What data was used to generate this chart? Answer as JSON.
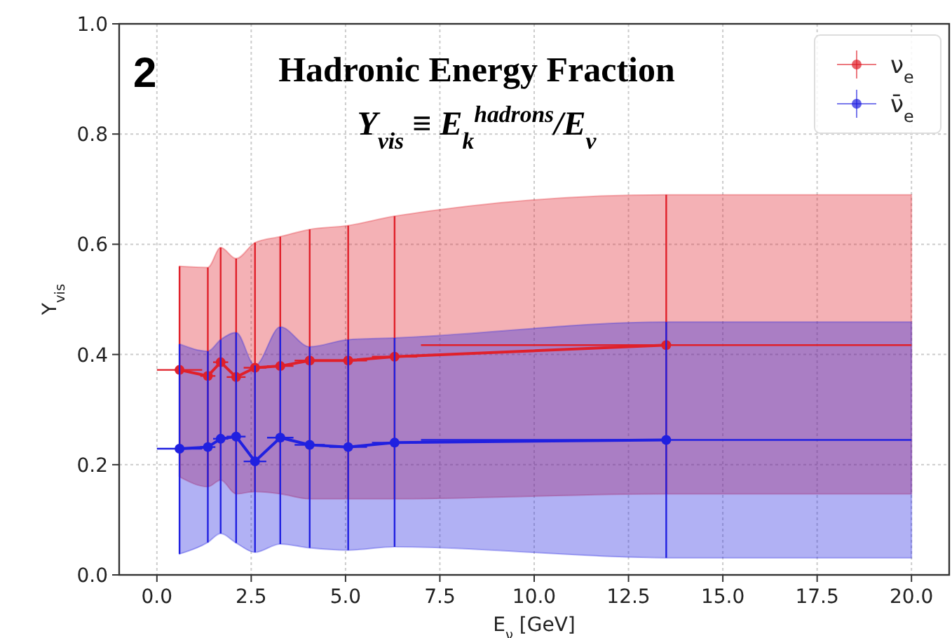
{
  "chart_data": {
    "type": "line",
    "title": "Hadronic Energy Fraction",
    "subtitle": "Y$_{vis}$ ≡ E$_{k}$$^{hadrons}$/E$_{ν}$",
    "xlabel": "E$_{ν}$ [GeV]",
    "ylabel": "Y$_{vis}$",
    "annotations": [
      "2"
    ],
    "x": [
      0.6,
      1.35,
      1.69,
      2.1,
      2.6,
      3.27,
      4.05,
      5.07,
      6.3,
      13.5,
      20
    ],
    "xlim": [
      -1,
      21
    ],
    "ylim": [
      0,
      1
    ],
    "xticks": [
      {
        "value": 0,
        "label": "0.0"
      },
      {
        "value": 2.5,
        "label": "2.5"
      },
      {
        "value": 5,
        "label": "5.0"
      },
      {
        "value": 7.5,
        "label": "7.5"
      },
      {
        "value": 10,
        "label": "10.0"
      },
      {
        "value": 12.5,
        "label": "12.5"
      },
      {
        "value": 15,
        "label": "15.0"
      },
      {
        "value": 17.5,
        "label": "17.5"
      },
      {
        "value": 20,
        "label": "20.0"
      }
    ],
    "yticks": [
      {
        "value": 0,
        "label": "0.0"
      },
      {
        "value": 0.2,
        "label": "0.2"
      },
      {
        "value": 0.4,
        "label": "0.4"
      },
      {
        "value": 0.6,
        "label": "0.6"
      },
      {
        "value": 0.8,
        "label": "0.8"
      },
      {
        "value": 1,
        "label": "1.0"
      }
    ],
    "grid": true,
    "legend": "top right",
    "marker": "circle",
    "line_style": "solid",
    "series": [
      {
        "name": "ν$_{e}$",
        "color": "#e0202a",
        "values": [
          0.372,
          0.361,
          0.386,
          0.359,
          0.376,
          0.379,
          0.389,
          0.389,
          0.396,
          0.417,
          null
        ],
        "xerrors": [
          0.6,
          0.2,
          0.2,
          0.25,
          0.3,
          0.35,
          0.4,
          0.5,
          0.6,
          6.5,
          null
        ],
        "errors": [
          [
            0.178,
            0.56
          ],
          [
            0.16,
            0.558
          ],
          [
            0.172,
            0.594
          ],
          [
            0.147,
            0.574
          ],
          [
            0.151,
            0.603
          ],
          [
            0.147,
            0.614
          ],
          [
            0.138,
            0.627
          ],
          [
            0.138,
            0.634
          ],
          [
            0.138,
            0.651
          ],
          [
            0.147,
            0.69
          ],
          null
        ],
        "lower": [
          0.178,
          0.16,
          0.172,
          0.147,
          0.151,
          0.147,
          0.138,
          0.138,
          0.138,
          0.147,
          0.147
        ],
        "upper": [
          0.56,
          0.558,
          0.594,
          0.574,
          0.603,
          0.614,
          0.627,
          0.634,
          0.651,
          0.69,
          0.69
        ]
      },
      {
        "name": "ν̄$_{e}$",
        "color": "#2020e0",
        "values": [
          0.229,
          0.232,
          0.247,
          0.251,
          0.206,
          0.249,
          0.236,
          0.232,
          0.24,
          0.245,
          null
        ],
        "xerrors": [
          0.6,
          0.2,
          0.2,
          0.25,
          0.3,
          0.35,
          0.4,
          0.5,
          0.6,
          6.5,
          null
        ],
        "errors": [
          [
            0.038,
            0.419
          ],
          [
            0.059,
            0.406
          ],
          [
            0.075,
            0.427
          ],
          [
            0.058,
            0.44
          ],
          [
            0.041,
            0.38
          ],
          [
            0.056,
            0.45
          ],
          [
            0.049,
            0.414
          ],
          [
            0.045,
            0.427
          ],
          [
            0.051,
            0.43
          ],
          [
            0.031,
            0.459
          ],
          null
        ],
        "lower": [
          0.038,
          0.059,
          0.075,
          0.058,
          0.041,
          0.056,
          0.049,
          0.045,
          0.051,
          0.031,
          0.031
        ],
        "upper": [
          0.419,
          0.406,
          0.427,
          0.44,
          0.38,
          0.45,
          0.414,
          0.427,
          0.43,
          0.459,
          0.459
        ]
      }
    ]
  }
}
